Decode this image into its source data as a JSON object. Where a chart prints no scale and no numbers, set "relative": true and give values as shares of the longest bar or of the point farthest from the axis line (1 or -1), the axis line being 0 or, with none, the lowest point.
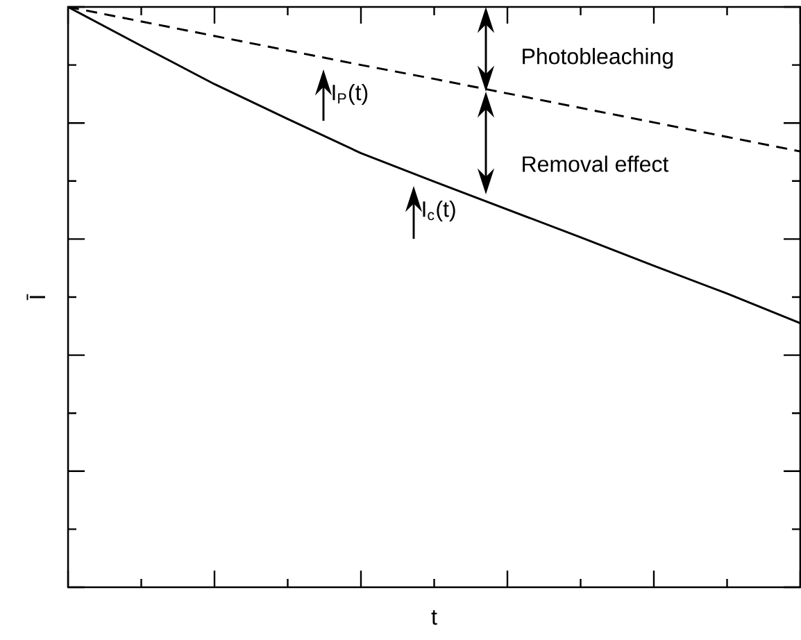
{
  "chart_data": {
    "type": "line",
    "relative": true,
    "xlabel": "t",
    "ylabel": "Ī",
    "categories": [
      null,
      null,
      null,
      null,
      null,
      null,
      null,
      null,
      null,
      null,
      null
    ],
    "series": [
      {
        "color": "#000000",
        "line_style": "dashed",
        "values": [
          1,
          0.975,
          0.95,
          0.925,
          0.9,
          0.876,
          0.851,
          0.826,
          0.801,
          0.776,
          0.751
        ]
      },
      {
        "color": "#000000",
        "line_style": "solid",
        "values": [
          1,
          0.933,
          0.867,
          0.807,
          0.748,
          0.699,
          0.651,
          0.603,
          0.554,
          0.506,
          0.455
        ]
      }
    ],
    "annotations": [
      "I$_{P}$(t)",
      "I$_{c}$(t)",
      "Photobleaching",
      "Removal effect"
    ]
  }
}
